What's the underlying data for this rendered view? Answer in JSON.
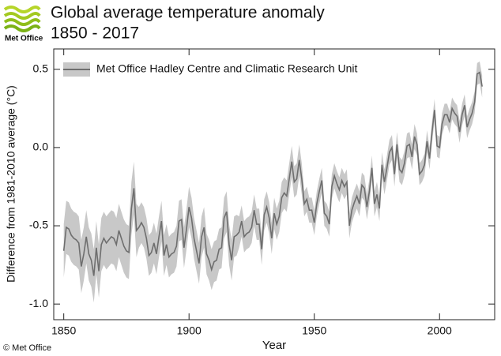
{
  "chart_data": {
    "type": "line",
    "logo": "Met Office",
    "title": "Global average temperature anomaly",
    "subtitle": "1850 - 2017",
    "xlabel": "Year",
    "ylabel": "Difference from 1981-2010 average (°C)",
    "credit": "© Met Office",
    "x": [
      1850,
      1851,
      1852,
      1853,
      1854,
      1855,
      1856,
      1857,
      1858,
      1859,
      1860,
      1861,
      1862,
      1863,
      1864,
      1865,
      1866,
      1867,
      1868,
      1869,
      1870,
      1871,
      1872,
      1873,
      1874,
      1875,
      1876,
      1877,
      1878,
      1879,
      1880,
      1881,
      1882,
      1883,
      1884,
      1885,
      1886,
      1887,
      1888,
      1889,
      1890,
      1891,
      1892,
      1893,
      1894,
      1895,
      1896,
      1897,
      1898,
      1899,
      1900,
      1901,
      1902,
      1903,
      1904,
      1905,
      1906,
      1907,
      1908,
      1909,
      1910,
      1911,
      1912,
      1913,
      1914,
      1915,
      1916,
      1917,
      1918,
      1919,
      1920,
      1921,
      1922,
      1923,
      1924,
      1925,
      1926,
      1927,
      1928,
      1929,
      1930,
      1931,
      1932,
      1933,
      1934,
      1935,
      1936,
      1937,
      1938,
      1939,
      1940,
      1941,
      1942,
      1943,
      1944,
      1945,
      1946,
      1947,
      1948,
      1949,
      1950,
      1951,
      1952,
      1953,
      1954,
      1955,
      1956,
      1957,
      1958,
      1959,
      1960,
      1961,
      1962,
      1963,
      1964,
      1965,
      1966,
      1967,
      1968,
      1969,
      1970,
      1971,
      1972,
      1973,
      1974,
      1975,
      1976,
      1977,
      1978,
      1979,
      1980,
      1981,
      1982,
      1983,
      1984,
      1985,
      1986,
      1987,
      1988,
      1989,
      1990,
      1991,
      1992,
      1993,
      1994,
      1995,
      1996,
      1997,
      1998,
      1999,
      2000,
      2001,
      2002,
      2003,
      2004,
      2005,
      2006,
      2007,
      2008,
      2009,
      2010,
      2011,
      2012,
      2013,
      2014,
      2015,
      2016,
      2017
    ],
    "series": [
      {
        "name": "Met Office Hadley Centre and Climatic Research Unit",
        "color": "#6e6e6e",
        "band_color": "#c8c8c8",
        "values": [
          -0.66,
          -0.51,
          -0.52,
          -0.56,
          -0.58,
          -0.59,
          -0.61,
          -0.76,
          -0.68,
          -0.57,
          -0.68,
          -0.72,
          -0.82,
          -0.64,
          -0.79,
          -0.62,
          -0.58,
          -0.61,
          -0.59,
          -0.57,
          -0.58,
          -0.62,
          -0.53,
          -0.58,
          -0.63,
          -0.66,
          -0.67,
          -0.39,
          -0.26,
          -0.53,
          -0.51,
          -0.48,
          -0.51,
          -0.58,
          -0.69,
          -0.67,
          -0.61,
          -0.68,
          -0.57,
          -0.47,
          -0.69,
          -0.62,
          -0.7,
          -0.68,
          -0.67,
          -0.63,
          -0.47,
          -0.46,
          -0.64,
          -0.52,
          -0.38,
          -0.45,
          -0.58,
          -0.66,
          -0.74,
          -0.57,
          -0.51,
          -0.68,
          -0.72,
          -0.78,
          -0.73,
          -0.72,
          -0.65,
          -0.64,
          -0.45,
          -0.41,
          -0.62,
          -0.72,
          -0.57,
          -0.56,
          -0.54,
          -0.47,
          -0.57,
          -0.55,
          -0.54,
          -0.51,
          -0.4,
          -0.49,
          -0.49,
          -0.65,
          -0.43,
          -0.38,
          -0.45,
          -0.58,
          -0.42,
          -0.49,
          -0.44,
          -0.32,
          -0.29,
          -0.31,
          -0.2,
          -0.09,
          -0.22,
          -0.2,
          -0.08,
          -0.2,
          -0.36,
          -0.33,
          -0.4,
          -0.4,
          -0.48,
          -0.36,
          -0.28,
          -0.21,
          -0.42,
          -0.44,
          -0.49,
          -0.25,
          -0.18,
          -0.23,
          -0.27,
          -0.21,
          -0.25,
          -0.22,
          -0.5,
          -0.4,
          -0.35,
          -0.31,
          -0.36,
          -0.24,
          -0.26,
          -0.38,
          -0.28,
          -0.13,
          -0.36,
          -0.3,
          -0.39,
          -0.11,
          -0.22,
          -0.13,
          -0.03,
          0.0,
          -0.17,
          0.02,
          -0.14,
          -0.16,
          -0.1,
          0.01,
          0.02,
          -0.06,
          0.07,
          0.02,
          -0.17,
          -0.15,
          -0.11,
          0.04,
          -0.07,
          0.1,
          0.24,
          0.01,
          0.0,
          0.15,
          0.21,
          0.21,
          0.16,
          0.25,
          0.22,
          0.2,
          0.1,
          0.21,
          0.27,
          0.13,
          0.18,
          0.22,
          0.29,
          0.47,
          0.48,
          0.39
        ],
        "uncertainty": [
          0.17,
          0.17,
          0.17,
          0.17,
          0.17,
          0.17,
          0.17,
          0.17,
          0.17,
          0.17,
          0.17,
          0.17,
          0.17,
          0.17,
          0.17,
          0.17,
          0.17,
          0.17,
          0.17,
          0.17,
          0.17,
          0.17,
          0.17,
          0.17,
          0.17,
          0.17,
          0.17,
          0.17,
          0.17,
          0.17,
          0.13,
          0.13,
          0.13,
          0.13,
          0.13,
          0.13,
          0.13,
          0.13,
          0.13,
          0.13,
          0.13,
          0.13,
          0.13,
          0.13,
          0.13,
          0.13,
          0.13,
          0.13,
          0.13,
          0.13,
          0.13,
          0.13,
          0.13,
          0.13,
          0.13,
          0.13,
          0.13,
          0.13,
          0.13,
          0.13,
          0.13,
          0.13,
          0.13,
          0.13,
          0.13,
          0.13,
          0.13,
          0.13,
          0.13,
          0.13,
          0.1,
          0.1,
          0.1,
          0.1,
          0.1,
          0.1,
          0.1,
          0.1,
          0.1,
          0.1,
          0.1,
          0.1,
          0.1,
          0.1,
          0.1,
          0.1,
          0.1,
          0.1,
          0.1,
          0.1,
          0.1,
          0.1,
          0.1,
          0.1,
          0.1,
          0.1,
          0.08,
          0.08,
          0.08,
          0.08,
          0.08,
          0.08,
          0.08,
          0.08,
          0.08,
          0.08,
          0.08,
          0.08,
          0.08,
          0.08,
          0.08,
          0.08,
          0.08,
          0.08,
          0.08,
          0.08,
          0.08,
          0.08,
          0.08,
          0.08,
          0.08,
          0.08,
          0.08,
          0.08,
          0.08,
          0.08,
          0.08,
          0.08,
          0.08,
          0.08,
          0.08,
          0.08,
          0.08,
          0.08,
          0.08,
          0.08,
          0.08,
          0.08,
          0.08,
          0.08,
          0.08,
          0.07,
          0.07,
          0.07,
          0.07,
          0.07,
          0.07,
          0.07,
          0.07,
          0.07,
          0.07,
          0.07,
          0.07,
          0.07,
          0.07,
          0.07,
          0.07,
          0.07,
          0.07,
          0.07,
          0.07,
          0.07,
          0.07,
          0.07,
          0.07,
          0.07,
          0.07,
          0.07
        ]
      }
    ],
    "xlim": [
      1846,
      2022
    ],
    "ylim": [
      -1.1,
      0.63
    ],
    "xticks": [
      1850,
      1900,
      1950,
      2000
    ],
    "yticks": [
      0.5,
      {
        "value": 0,
        "label": "0.0"
      },
      -0.5,
      {
        "value": -1,
        "label": "-1.0"
      }
    ],
    "legend": "upper left"
  }
}
